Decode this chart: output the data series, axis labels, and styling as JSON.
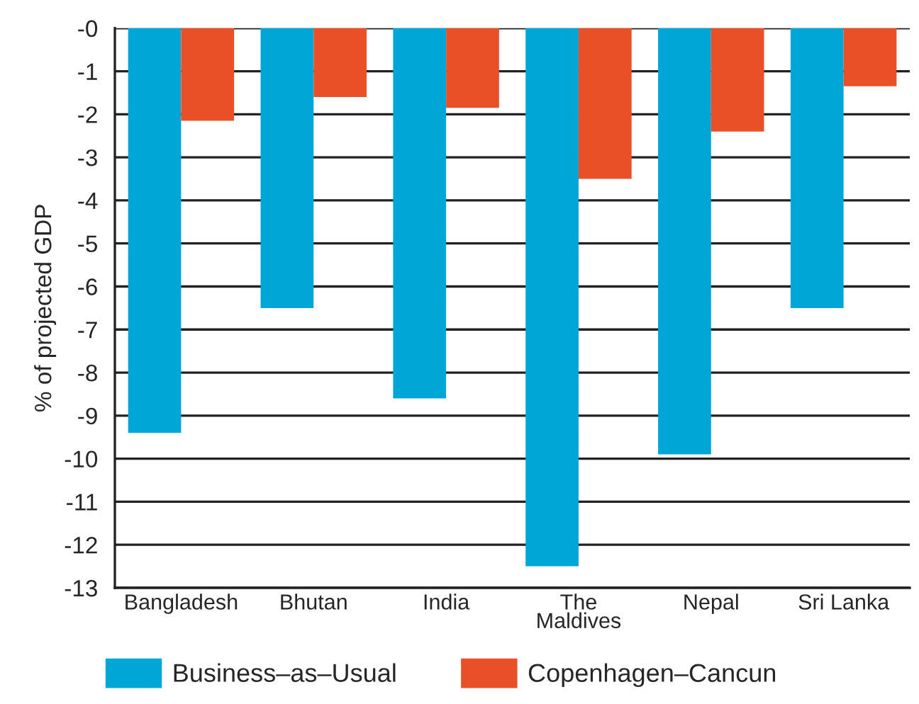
{
  "chart_data": {
    "type": "bar",
    "ylabel": "% of projected GDP",
    "categories": [
      "Bangladesh",
      "Bhutan",
      "India",
      "The\nMaldives",
      "Nepal",
      "Sri Lanka"
    ],
    "series": [
      {
        "name": "Business–as–Usual",
        "color": "#00a6d6",
        "values": [
          -9.4,
          -6.5,
          -8.6,
          -12.5,
          -9.9,
          -6.5
        ]
      },
      {
        "name": "Copenhagen–Cancun",
        "color": "#ea5028",
        "values": [
          -2.15,
          -1.6,
          -1.85,
          -3.5,
          -2.4,
          -1.35
        ]
      }
    ],
    "ylim": [
      -13,
      0
    ],
    "yticks": [
      {
        "value": 0,
        "label": "-0"
      },
      -1,
      -2,
      -3,
      -4,
      -5,
      -6,
      -7,
      -8,
      -9,
      -10,
      -11,
      -12,
      -13
    ],
    "grid": "y",
    "legend": "bottom"
  }
}
